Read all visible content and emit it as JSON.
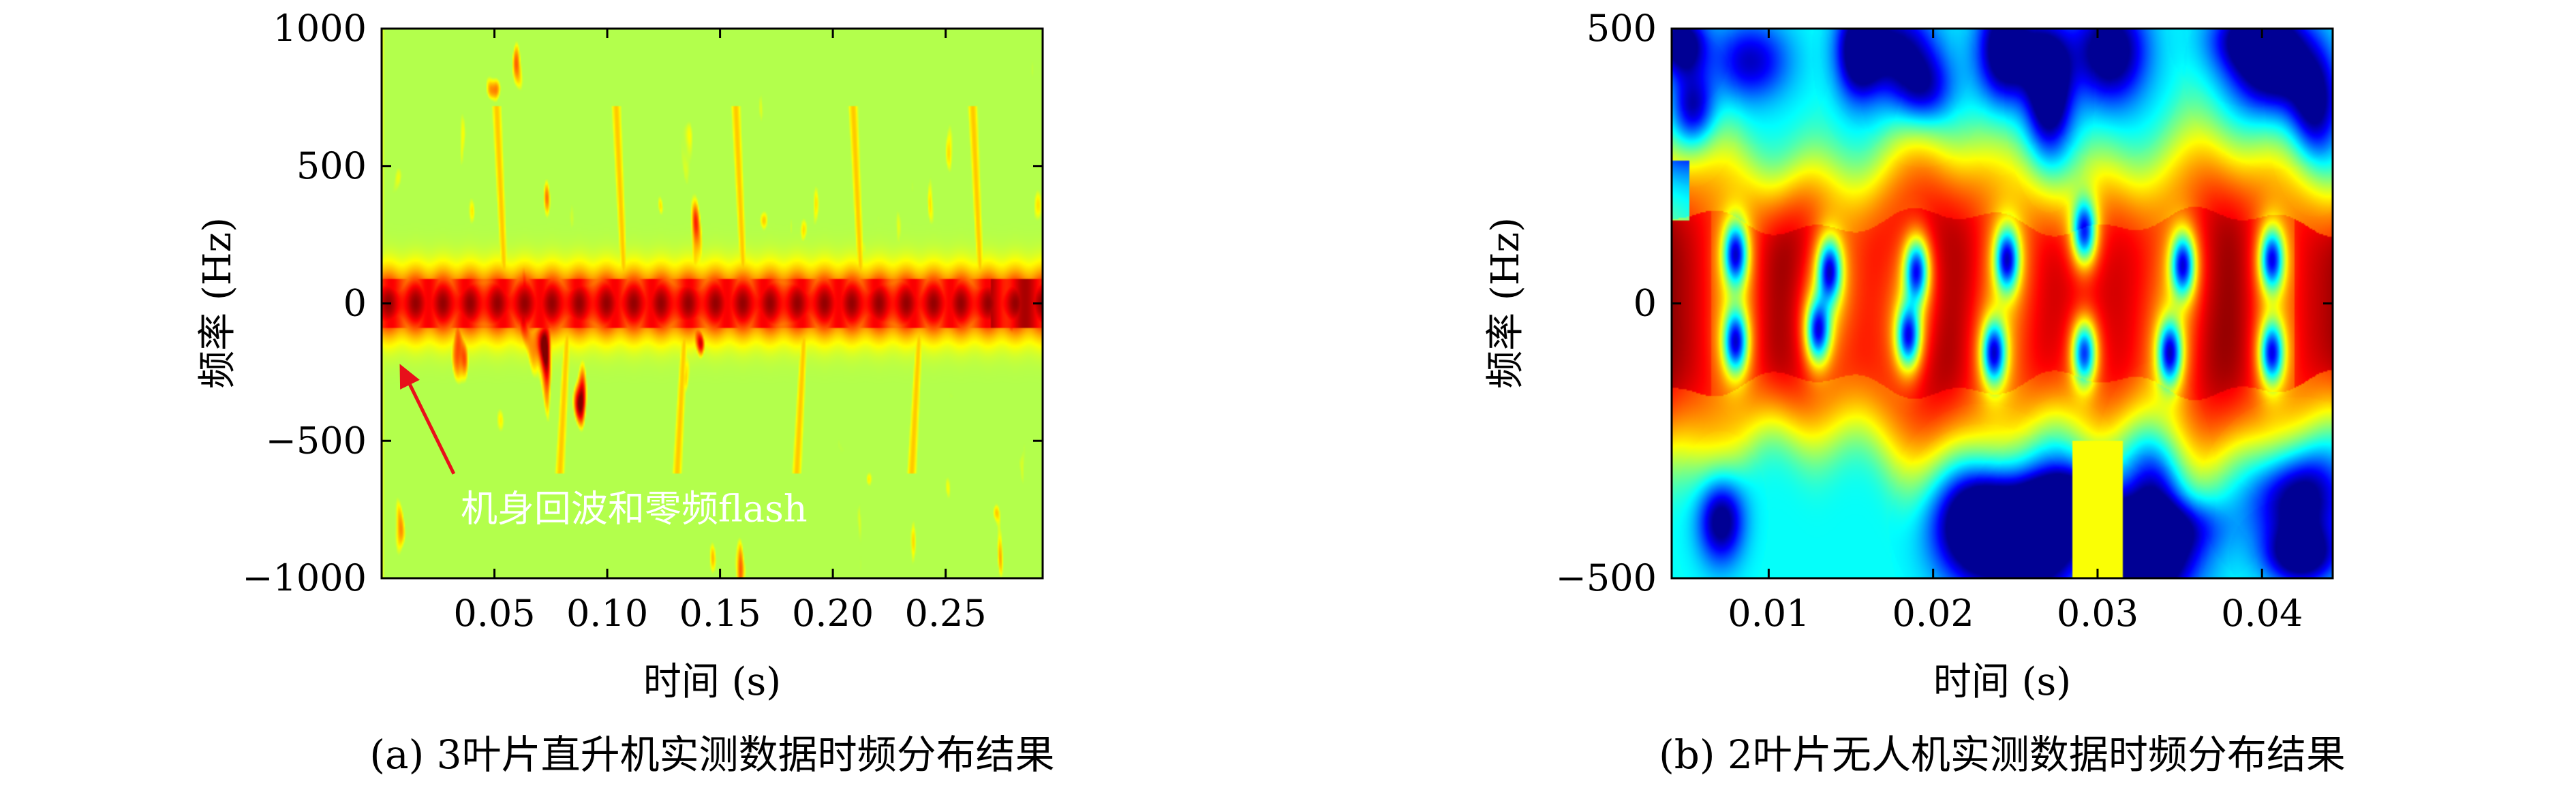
{
  "chart_data": [
    {
      "type": "heatmap",
      "colormap": "jet",
      "caption": "(a) 3叶片直升机实测数据时频分布结果",
      "xlabel": "时间 (s)",
      "ylabel": "频率 (Hz)",
      "xlim": [
        0.0,
        0.293
      ],
      "ylim": [
        -1000,
        1000
      ],
      "xticks": [
        0.05,
        0.1,
        0.15,
        0.2,
        0.25
      ],
      "xtick_labels": [
        "0.05",
        "0.10",
        "0.15",
        "0.20",
        "0.25"
      ],
      "yticks": [
        1000,
        500,
        0,
        -500,
        -1000
      ],
      "ytick_labels": [
        "1000",
        "500",
        "0",
        "−500",
        "−1000"
      ],
      "annotation": {
        "text": "机身回波和零频flash",
        "arrow_to": {
          "x": 0.008,
          "y": -220
        },
        "arrow_from": {
          "x": 0.032,
          "y": -620
        }
      },
      "main_band": {
        "center_hz": 0,
        "halfwidth_hz": 150
      },
      "flashes": [
        {
          "t": 0.055,
          "f_min": 0,
          "f_max": 720
        },
        {
          "t": 0.083,
          "f_min": -620,
          "f_max": 0
        },
        {
          "t": 0.108,
          "f_min": 0,
          "f_max": 720
        },
        {
          "t": 0.135,
          "f_min": -620,
          "f_max": 0
        },
        {
          "t": 0.161,
          "f_min": 0,
          "f_max": 720
        },
        {
          "t": 0.188,
          "f_min": -620,
          "f_max": 0
        },
        {
          "t": 0.213,
          "f_min": 0,
          "f_max": 720
        },
        {
          "t": 0.239,
          "f_min": -620,
          "f_max": 0
        },
        {
          "t": 0.266,
          "f_min": 0,
          "f_max": 720
        }
      ]
    },
    {
      "type": "heatmap",
      "colormap": "jet",
      "caption": "(b) 2叶片无人机实测数据时频分布结果",
      "xlabel": "时间 (s)",
      "ylabel": "频率 (Hz)",
      "xlim": [
        0.0041,
        0.0443
      ],
      "ylim": [
        -500,
        500
      ],
      "xticks": [
        0.01,
        0.02,
        0.03,
        0.04
      ],
      "xtick_labels": [
        "0.01",
        "0.02",
        "0.03",
        "0.04"
      ],
      "yticks": [
        500,
        0,
        -500
      ],
      "ytick_labels": [
        "500",
        "0",
        "−500"
      ],
      "main_band": {
        "center_hz": 0,
        "halfwidth_hz": 270
      },
      "blade_dips": [
        {
          "t": 0.008,
          "f": 90
        },
        {
          "t": 0.008,
          "f": -70
        },
        {
          "t": 0.0137,
          "f": 60
        },
        {
          "t": 0.013,
          "f": -50
        },
        {
          "t": 0.019,
          "f": 60
        },
        {
          "t": 0.0185,
          "f": -60
        },
        {
          "t": 0.0245,
          "f": 80
        },
        {
          "t": 0.0237,
          "f": -90
        },
        {
          "t": 0.0292,
          "f": 130
        },
        {
          "t": 0.0292,
          "f": -90
        },
        {
          "t": 0.0352,
          "f": 70
        },
        {
          "t": 0.0344,
          "f": -90
        },
        {
          "t": 0.0406,
          "f": 80
        },
        {
          "t": 0.0406,
          "f": -90
        }
      ]
    }
  ]
}
